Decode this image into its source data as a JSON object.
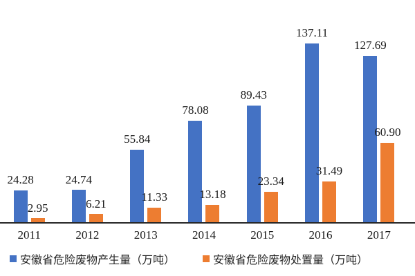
{
  "chart_data": {
    "type": "bar",
    "categories": [
      "2011",
      "2012",
      "2013",
      "2014",
      "2015",
      "2016",
      "2017"
    ],
    "series": [
      {
        "name": "安徽省危险废物产生量（万吨）",
        "color": "#4472C4",
        "values": [
          24.28,
          24.74,
          55.84,
          78.08,
          89.43,
          137.11,
          127.69
        ],
        "labels": [
          "24.28",
          "24.74",
          "55.84",
          "78.08",
          "89.43",
          "137.11",
          "127.69"
        ]
      },
      {
        "name": "安徽省危险废物处置量（万吨）",
        "color": "#ED7D31",
        "values": [
          2.95,
          6.21,
          11.33,
          13.18,
          23.34,
          31.49,
          60.9
        ],
        "labels": [
          "2.95",
          "6.21",
          "11.33",
          "13.18",
          "23.34",
          "31.49",
          "60.90"
        ]
      }
    ],
    "title": "",
    "xlabel": "",
    "ylabel": "",
    "ylim": [
      0,
      145
    ],
    "grid": false,
    "value_labels": true,
    "legend_position": "bottom",
    "axis_line_color": "#262626",
    "label_color": "#1a1a1a"
  }
}
